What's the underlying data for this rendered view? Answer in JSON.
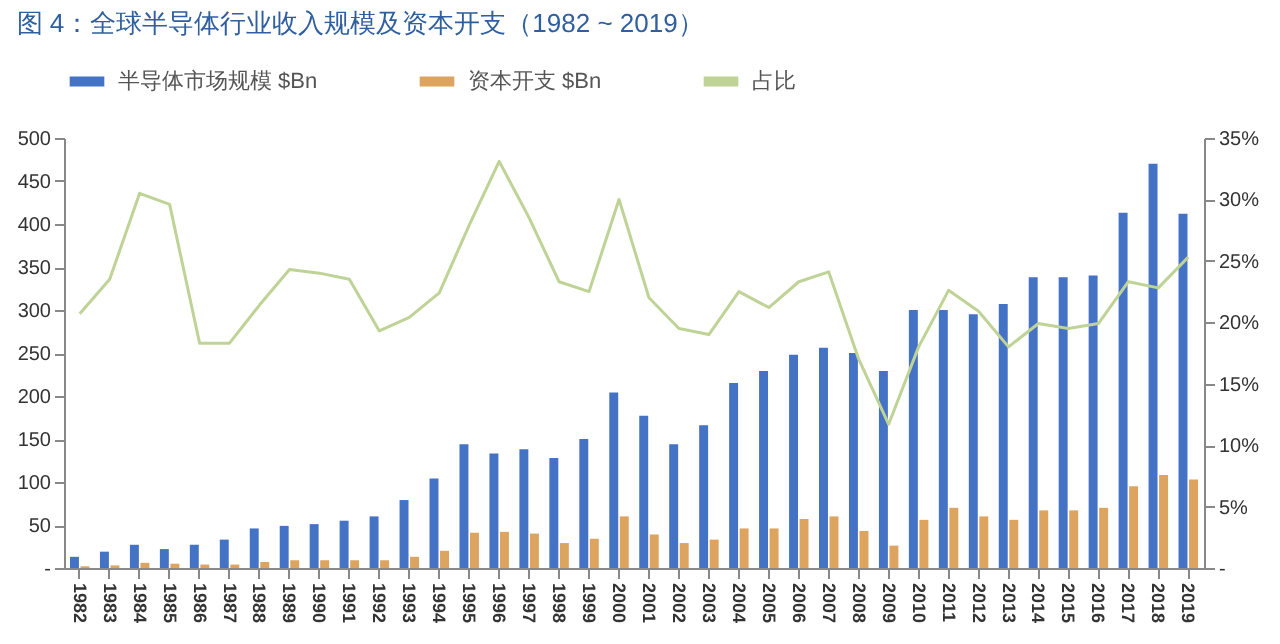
{
  "chart_data": {
    "type": "bar",
    "title": "图 4：全球半导体行业收入规模及资本开支（1982 ~ 2019）",
    "categories": [
      "1982",
      "1983",
      "1984",
      "1985",
      "1986",
      "1987",
      "1988",
      "1989",
      "1990",
      "1991",
      "1992",
      "1993",
      "1994",
      "1995",
      "1996",
      "1997",
      "1998",
      "1999",
      "2000",
      "2001",
      "2002",
      "2003",
      "2004",
      "2005",
      "2006",
      "2007",
      "2008",
      "2009",
      "2010",
      "2011",
      "2012",
      "2013",
      "2014",
      "2015",
      "2016",
      "2017",
      "2018",
      "2019"
    ],
    "series": [
      {
        "name": "半导体市场规模 $Bn",
        "color": "#4472c4",
        "values": [
          13,
          19,
          27,
          22,
          27,
          33,
          46,
          49,
          51,
          55,
          60,
          79,
          104,
          144,
          133,
          138,
          128,
          150,
          204,
          177,
          144,
          166,
          215,
          229,
          248,
          256,
          250,
          229,
          300,
          300,
          295,
          307,
          338,
          338,
          340,
          413,
          470,
          412
        ]
      },
      {
        "name": "资本开支 $Bn",
        "color": "#dca45e",
        "values": [
          2,
          3,
          6,
          5,
          4,
          4,
          7,
          9,
          9,
          9,
          9,
          13,
          20,
          41,
          42,
          40,
          29,
          34,
          60,
          39,
          29,
          33,
          46,
          46,
          57,
          60,
          43,
          26,
          56,
          70,
          60,
          56,
          67,
          67,
          70,
          95,
          108,
          103
        ]
      },
      {
        "name": "占比",
        "type": "line",
        "axis": "y2",
        "color": "#bfd396",
        "values": [
          20.7,
          23.5,
          30.5,
          29.6,
          18.3,
          18.3,
          21.4,
          24.3,
          24.0,
          23.5,
          19.3,
          20.4,
          22.4,
          27.9,
          33.1,
          28.5,
          23.3,
          22.5,
          30.0,
          22.0,
          19.5,
          19.0,
          22.5,
          21.2,
          23.3,
          24.1,
          17.0,
          11.7,
          18.0,
          22.6,
          20.9,
          18.0,
          19.9,
          19.5,
          19.9,
          23.3,
          22.8,
          25.3
        ]
      }
    ],
    "ylim": [
      0,
      500
    ],
    "yticks": [
      {
        "value": 0,
        "label": "-"
      },
      50,
      100,
      150,
      200,
      250,
      300,
      350,
      400,
      450,
      500
    ],
    "y2lim": [
      0,
      35
    ],
    "y2ticks": [
      {
        "value": 0,
        "label": "-"
      },
      {
        "value": 5,
        "label": "5%"
      },
      {
        "value": 10,
        "label": "10%"
      },
      {
        "value": 15,
        "label": "15%"
      },
      {
        "value": 20,
        "label": "20%"
      },
      {
        "value": 25,
        "label": "25%"
      },
      {
        "value": 30,
        "label": "30%"
      },
      {
        "value": 35,
        "label": "35%"
      }
    ],
    "legend": "top",
    "grid": false
  }
}
